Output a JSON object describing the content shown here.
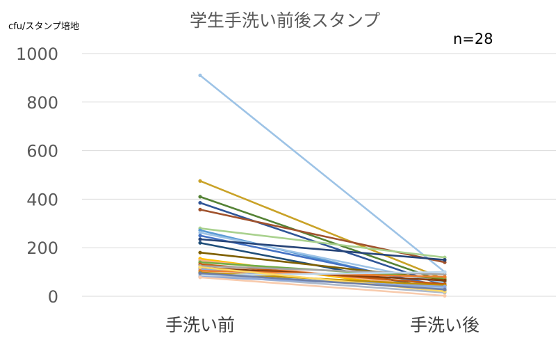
{
  "chart_data": {
    "type": "line",
    "title": "学生手洗い前後スタンプ",
    "ylabel": "cfu/スタンプ培地",
    "annotation": "n=28",
    "categories": [
      "手洗い前",
      "手洗い後"
    ],
    "ylim": [
      0,
      1000
    ],
    "yticks": [
      "0",
      "200",
      "400",
      "600",
      "800",
      "1000"
    ],
    "grid": true,
    "legend": "none",
    "series": [
      {
        "values": [
          910,
          100
        ],
        "color": "#9DC3E6"
      },
      {
        "values": [
          475,
          70
        ],
        "color": "#C9A227"
      },
      {
        "values": [
          410,
          60
        ],
        "color": "#548235"
      },
      {
        "values": [
          385,
          45
        ],
        "color": "#2F5597"
      },
      {
        "values": [
          357,
          140
        ],
        "color": "#A0522D"
      },
      {
        "values": [
          280,
          160
        ],
        "color": "#A9D18E"
      },
      {
        "values": [
          272,
          30
        ],
        "color": "#5B9BD5"
      },
      {
        "values": [
          262,
          55
        ],
        "color": "#9DC3E6"
      },
      {
        "values": [
          250,
          40
        ],
        "color": "#4472C4"
      },
      {
        "values": [
          235,
          150
        ],
        "color": "#264478"
      },
      {
        "values": [
          220,
          25
        ],
        "color": "#1F4E79"
      },
      {
        "values": [
          180,
          70
        ],
        "color": "#7F6000"
      },
      {
        "values": [
          155,
          20
        ],
        "color": "#FFC000"
      },
      {
        "values": [
          148,
          35
        ],
        "color": "#F4B183"
      },
      {
        "values": [
          140,
          75
        ],
        "color": "#70AD47"
      },
      {
        "values": [
          132,
          50
        ],
        "color": "#C55A11"
      },
      {
        "values": [
          125,
          90
        ],
        "color": "#A5A5A5"
      },
      {
        "values": [
          118,
          65
        ],
        "color": "#843C0C"
      },
      {
        "values": [
          112,
          30
        ],
        "color": "#8FAADC"
      },
      {
        "values": [
          105,
          80
        ],
        "color": "#ED7D31"
      },
      {
        "values": [
          98,
          45
        ],
        "color": "#BF9000"
      },
      {
        "values": [
          92,
          35
        ],
        "color": "#9DC3E6"
      },
      {
        "values": [
          88,
          15
        ],
        "color": "#ADB9CA"
      },
      {
        "values": [
          85,
          100
        ],
        "color": "#BDD7EE"
      },
      {
        "values": [
          80,
          40
        ],
        "color": "#8EA9DB"
      },
      {
        "values": [
          78,
          2
        ],
        "color": "#F8CBAD"
      },
      {
        "values": [
          120,
          20
        ],
        "color": "#FFD966"
      },
      {
        "values": [
          95,
          28
        ],
        "color": "#6F7FA6"
      }
    ]
  }
}
